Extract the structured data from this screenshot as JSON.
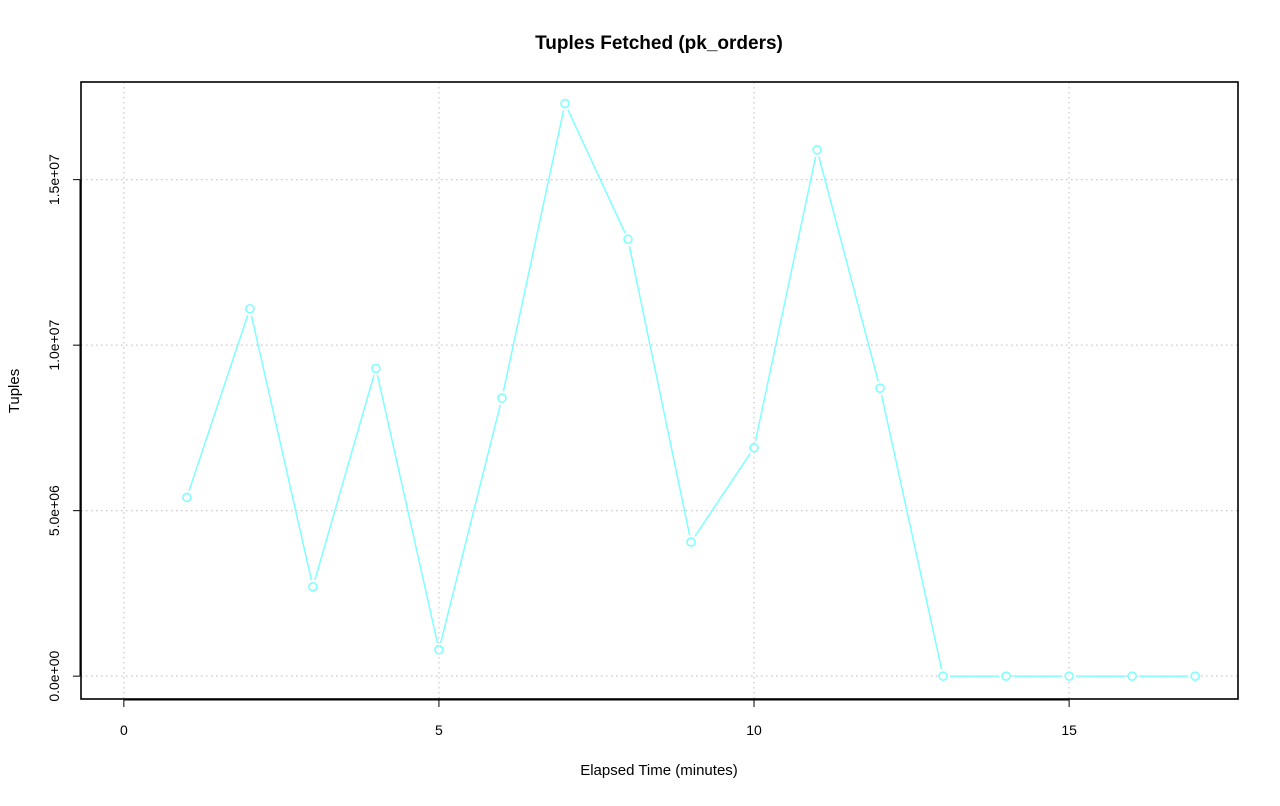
{
  "chart_data": {
    "type": "line",
    "title": "Tuples Fetched (pk_orders)",
    "xlabel": "Elapsed Time (minutes)",
    "ylabel": "Tuples",
    "xlim": [
      -0.68,
      17.68
    ],
    "ylim": [
      -690000,
      17950000
    ],
    "x_ticks": [
      0,
      5,
      10,
      15
    ],
    "x_tick_labels": [
      "0",
      "5",
      "10",
      "15"
    ],
    "y_ticks": [
      0,
      5000000,
      10000000,
      15000000
    ],
    "y_tick_labels": [
      "0.0e+00",
      "5.0e+06",
      "1.0e+07",
      "1.5e+07"
    ],
    "grid": true,
    "series": [
      {
        "color": "#7fffff",
        "marker": "open-circle",
        "x": [
          1,
          2,
          3,
          4,
          5,
          6,
          7,
          8,
          9,
          10,
          11,
          12,
          13,
          14,
          15,
          16,
          17
        ],
        "y": [
          5400000,
          11100000,
          2700000,
          9300000,
          800000,
          8400000,
          17300000,
          13200000,
          4050000,
          6900000,
          15900000,
          8700000,
          0,
          0,
          0,
          0,
          0
        ]
      }
    ]
  }
}
